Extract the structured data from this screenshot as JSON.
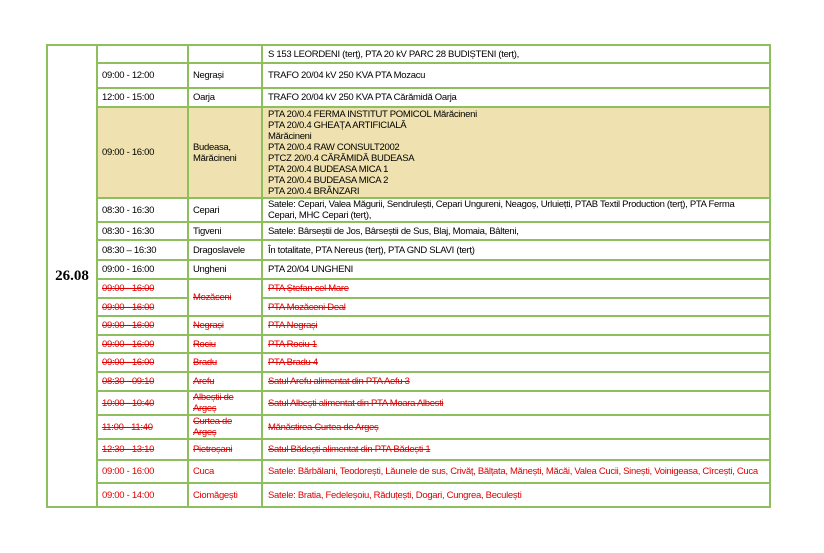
{
  "date": "26.08",
  "colors": {
    "border": "#8dbf5e",
    "highlight": "#efe2b0",
    "cancelled_text": "#e00000"
  },
  "rows": [
    {
      "time": "",
      "locality": "",
      "details": [
        "S 153 LEORDENI (terț), PTA 20 kV PARC 28 BUDIȘTENI (terț),"
      ]
    },
    {
      "time": "09:00 - 12:00",
      "locality": "Negrași",
      "details": [
        "TRAFO 20/04 kV 250 KVA PTA Mozacu"
      ]
    },
    {
      "time": "12:00 - 15:00",
      "locality": "Oarja",
      "details": [
        "TRAFO 20/04 kV 250 KVA PTA Cărămidă Oarja"
      ]
    },
    {
      "time": "09:00 - 16:00",
      "locality": "Budeasa, Mărăcineni",
      "highlight": true,
      "details": [
        "PTA 20/0.4 FERMA INSTITUT POMICOL Mărăcineni",
        "PTA 20/0.4 GHEAȚA ARTIFICIALĂ",
        "Mărăcineni",
        "PTA 20/0.4 RAW CONSULT2002",
        "PTCZ 20/0.4 CĂRĂMIDĂ BUDEASA",
        "PTA 20/0.4 BUDEASA MICA 1",
        "PTA 20/0.4 BUDEASA MICA 2",
        "PTA 20/0.4 BRÂNZARI"
      ]
    },
    {
      "time": "08:30 - 16:30",
      "locality": "Cepari",
      "details": [
        "Satele: Cepari, Valea Măgurii, Sendrulești, Cepari Ungureni, Neagoș, Urluiețti, PTAB Textil Production (terț), PTA Ferma Cepari, MHC Cepari (terț),"
      ]
    },
    {
      "time": "08:30 - 16:30",
      "locality": "Tigveni",
      "details": [
        "Satele: Bârseștii de Jos, Bârseștii de Sus, Blaj, Momaia, Bâlteni,"
      ]
    },
    {
      "time": "08:30 – 16:30",
      "locality": "Dragoslavele",
      "details": [
        "În totalitate, PTA Nereus (terț), PTA GND SLAVI (terț)"
      ]
    },
    {
      "time": "09:00 - 16:00",
      "locality": "Ungheni",
      "details": [
        "PTA 20/04 UNGHENI"
      ]
    },
    {
      "time": "09:00 - 16:00",
      "locality": "Mozăceni",
      "cancelled": true,
      "details": [
        "PTA Ștefan cel Mare"
      ]
    },
    {
      "time": "09:00 - 16:00",
      "locality": "",
      "cancelled": true,
      "details": [
        "PTA Mozăceni Deal"
      ]
    },
    {
      "time": "09:00 - 16:00",
      "locality": "Negrași",
      "cancelled": true,
      "details": [
        "PTA Negrași"
      ]
    },
    {
      "time": "09:00 - 16:00",
      "locality": "Rociu",
      "cancelled": true,
      "details": [
        "PTA Rociu 1"
      ]
    },
    {
      "time": "09:00 - 16:00",
      "locality": "Bradu",
      "cancelled": true,
      "details": [
        "PTA Bradu 4"
      ]
    },
    {
      "time": "08:30 - 09:10",
      "locality": "Arefu",
      "cancelled": true,
      "details": [
        "Satul Arefu alimentat din PTA Aefu 3"
      ]
    },
    {
      "time": "10:00 - 10:40",
      "locality": "Albeștii de Argeș",
      "cancelled": true,
      "details": [
        "Satul Albești alimentat din PTA  Moara Albesti"
      ]
    },
    {
      "time": "11:00 - 11:40",
      "locality": "Curtea de Argeș",
      "cancelled": true,
      "details": [
        "Mănăstirea Curtea de Argeș"
      ]
    },
    {
      "time": "12:30 - 13:10",
      "locality": "Pietroșani",
      "cancelled": true,
      "details": [
        "Satul Bădești alimentat din PTA Bădești 1"
      ]
    },
    {
      "time": "09:00 - 16:00",
      "locality": "Cuca",
      "red": true,
      "details": [
        "Satele: Bărbălani, Teodorești, Lăunele de sus, Crivăț, Bălțata, Mănești, Măcăi, Valea Cucii, Sinești, Voinigeasa, Cîrcești, Cuca"
      ]
    },
    {
      "time": "09:00 - 14:00",
      "locality": "Ciomăgești",
      "red": true,
      "details": [
        "Satele: Bratia, Fedeleșoiu, Răduțești, Dogari, Cungrea, Beculești"
      ]
    }
  ]
}
